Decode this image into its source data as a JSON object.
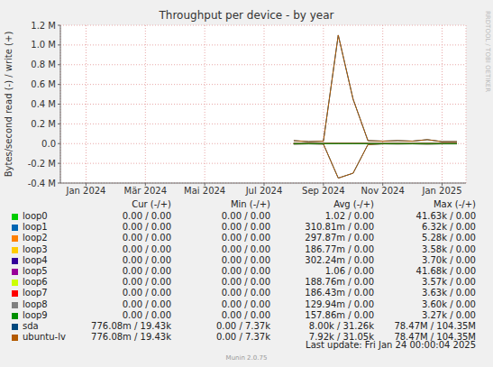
{
  "chart_data": {
    "type": "line",
    "title": "Throughput per device - by year",
    "y_label": "Bytes/second read (-) / write (+)",
    "side_text": "RRDTOOL / TOBI OETIKER",
    "categories": [
      null,
      "Jan 2024",
      null,
      null,
      null,
      "Mär 2024",
      null,
      null,
      null,
      "Mai 2024",
      null,
      null,
      null,
      "Jul 2024",
      null,
      null,
      null,
      "Sep 2024",
      null,
      null,
      null,
      "Nov 2024",
      null,
      null,
      null,
      "Jan 2025",
      null
    ],
    "ylim": [
      -400000,
      1200000
    ],
    "yticks": [
      {
        "value": -400000,
        "label": "-0.4 M"
      },
      {
        "value": -200000,
        "label": "-0.2 M"
      },
      {
        "value": 0,
        "label": "0.0"
      },
      {
        "value": 200000,
        "label": "0.2 M"
      },
      {
        "value": 400000,
        "label": "0.4 M"
      },
      {
        "value": 600000,
        "label": "0.6 M"
      },
      {
        "value": 800000,
        "label": "0.8 M"
      },
      {
        "value": 1000000,
        "label": "1.0 M"
      },
      {
        "value": 1200000,
        "label": "1.2 M"
      }
    ],
    "grid": true,
    "stat_headers": [
      "Cur (-/+)",
      "Min (-/+)",
      "Avg (-/+)",
      "Max (-/+)"
    ],
    "series": [
      {
        "name": "loop0",
        "color": "#00cc00",
        "stats": [
          "0.00 / 0.00",
          "0.00 / 0.00",
          "1.02 / 0.00",
          "41.63k / 0.00"
        ],
        "read": [
          null,
          null,
          null,
          null,
          null,
          null,
          null,
          null,
          null,
          null,
          null,
          null,
          null,
          null,
          null,
          0,
          0,
          0,
          0,
          0,
          0,
          0,
          0,
          0,
          0,
          0,
          0
        ],
        "write": [
          null,
          null,
          null,
          null,
          null,
          null,
          null,
          null,
          null,
          null,
          null,
          null,
          null,
          null,
          null,
          0,
          0,
          0,
          0,
          0,
          0,
          0,
          0,
          0,
          0,
          0,
          0
        ]
      },
      {
        "name": "loop1",
        "color": "#0066b3",
        "stats": [
          "0.00 / 0.00",
          "0.00 / 0.00",
          "310.81m / 0.00",
          "6.32k / 0.00"
        ],
        "read": [
          null,
          null,
          null,
          null,
          null,
          null,
          null,
          null,
          null,
          null,
          null,
          null,
          null,
          null,
          null,
          0,
          0,
          0,
          0,
          0,
          0,
          0,
          0,
          0,
          0,
          0,
          0
        ],
        "write": [
          null,
          null,
          null,
          null,
          null,
          null,
          null,
          null,
          null,
          null,
          null,
          null,
          null,
          null,
          null,
          0,
          0,
          0,
          0,
          0,
          0,
          0,
          0,
          0,
          0,
          0,
          0
        ]
      },
      {
        "name": "loop2",
        "color": "#ff8000",
        "stats": [
          "0.00 / 0.00",
          "0.00 / 0.00",
          "297.87m / 0.00",
          "5.28k / 0.00"
        ],
        "read": [
          null,
          null,
          null,
          null,
          null,
          null,
          null,
          null,
          null,
          null,
          null,
          null,
          null,
          null,
          null,
          0,
          0,
          0,
          0,
          0,
          0,
          0,
          0,
          0,
          0,
          0,
          0
        ],
        "write": [
          null,
          null,
          null,
          null,
          null,
          null,
          null,
          null,
          null,
          null,
          null,
          null,
          null,
          null,
          null,
          0,
          0,
          0,
          0,
          0,
          0,
          0,
          0,
          0,
          0,
          0,
          0
        ]
      },
      {
        "name": "loop3",
        "color": "#ffcc00",
        "stats": [
          "0.00 / 0.00",
          "0.00 / 0.00",
          "186.77m / 0.00",
          "3.58k / 0.00"
        ],
        "read": [
          null,
          null,
          null,
          null,
          null,
          null,
          null,
          null,
          null,
          null,
          null,
          null,
          null,
          null,
          null,
          0,
          0,
          0,
          0,
          0,
          0,
          0,
          0,
          0,
          0,
          0,
          0
        ],
        "write": [
          null,
          null,
          null,
          null,
          null,
          null,
          null,
          null,
          null,
          null,
          null,
          null,
          null,
          null,
          null,
          0,
          0,
          0,
          0,
          0,
          0,
          0,
          0,
          0,
          0,
          0,
          0
        ]
      },
      {
        "name": "loop4",
        "color": "#330099",
        "stats": [
          "0.00 / 0.00",
          "0.00 / 0.00",
          "302.24m / 0.00",
          "3.70k / 0.00"
        ],
        "read": [
          null,
          null,
          null,
          null,
          null,
          null,
          null,
          null,
          null,
          null,
          null,
          null,
          null,
          null,
          null,
          0,
          0,
          0,
          0,
          0,
          0,
          0,
          0,
          0,
          0,
          0,
          0
        ],
        "write": [
          null,
          null,
          null,
          null,
          null,
          null,
          null,
          null,
          null,
          null,
          null,
          null,
          null,
          null,
          null,
          0,
          0,
          0,
          0,
          0,
          0,
          0,
          0,
          0,
          0,
          0,
          0
        ]
      },
      {
        "name": "loop5",
        "color": "#990099",
        "stats": [
          "0.00 / 0.00",
          "0.00 / 0.00",
          "1.06 / 0.00",
          "41.68k / 0.00"
        ],
        "read": [
          null,
          null,
          null,
          null,
          null,
          null,
          null,
          null,
          null,
          null,
          null,
          null,
          null,
          null,
          null,
          0,
          0,
          0,
          0,
          0,
          0,
          0,
          0,
          0,
          0,
          0,
          0
        ],
        "write": [
          null,
          null,
          null,
          null,
          null,
          null,
          null,
          null,
          null,
          null,
          null,
          null,
          null,
          null,
          null,
          0,
          0,
          0,
          0,
          0,
          0,
          0,
          0,
          0,
          0,
          0,
          0
        ]
      },
      {
        "name": "loop6",
        "color": "#ccff00",
        "stats": [
          "0.00 / 0.00",
          "0.00 / 0.00",
          "188.76m / 0.00",
          "3.57k / 0.00"
        ],
        "read": [
          null,
          null,
          null,
          null,
          null,
          null,
          null,
          null,
          null,
          null,
          null,
          null,
          null,
          null,
          null,
          0,
          0,
          0,
          0,
          0,
          0,
          0,
          0,
          0,
          0,
          0,
          0
        ],
        "write": [
          null,
          null,
          null,
          null,
          null,
          null,
          null,
          null,
          null,
          null,
          null,
          null,
          null,
          null,
          null,
          0,
          0,
          0,
          0,
          0,
          0,
          0,
          0,
          0,
          0,
          0,
          0
        ]
      },
      {
        "name": "loop7",
        "color": "#ff0000",
        "stats": [
          "0.00 / 0.00",
          "0.00 / 0.00",
          "186.43m / 0.00",
          "3.63k / 0.00"
        ],
        "read": [
          null,
          null,
          null,
          null,
          null,
          null,
          null,
          null,
          null,
          null,
          null,
          null,
          null,
          null,
          null,
          0,
          0,
          0,
          0,
          0,
          0,
          0,
          0,
          0,
          0,
          0,
          0
        ],
        "write": [
          null,
          null,
          null,
          null,
          null,
          null,
          null,
          null,
          null,
          null,
          null,
          null,
          null,
          null,
          null,
          0,
          0,
          0,
          0,
          0,
          0,
          0,
          0,
          0,
          0,
          0,
          0
        ]
      },
      {
        "name": "loop8",
        "color": "#808080",
        "stats": [
          "0.00 / 0.00",
          "0.00 / 0.00",
          "129.94m / 0.00",
          "3.60k / 0.00"
        ],
        "read": [
          null,
          null,
          null,
          null,
          null,
          null,
          null,
          null,
          null,
          null,
          null,
          null,
          null,
          null,
          null,
          0,
          0,
          0,
          0,
          0,
          0,
          0,
          0,
          0,
          0,
          0,
          0
        ],
        "write": [
          null,
          null,
          null,
          null,
          null,
          null,
          null,
          null,
          null,
          null,
          null,
          null,
          null,
          null,
          null,
          0,
          0,
          0,
          0,
          0,
          0,
          0,
          0,
          0,
          0,
          0,
          0
        ]
      },
      {
        "name": "loop9",
        "color": "#008f00",
        "stats": [
          "0.00 / 0.00",
          "0.00 / 0.00",
          "157.86m / 0.00",
          "3.27k / 0.00"
        ],
        "read": [
          null,
          null,
          null,
          null,
          null,
          null,
          null,
          null,
          null,
          null,
          null,
          null,
          null,
          null,
          null,
          0,
          0,
          0,
          0,
          0,
          0,
          0,
          0,
          0,
          0,
          0,
          0
        ],
        "write": [
          null,
          null,
          null,
          null,
          null,
          null,
          null,
          null,
          null,
          null,
          null,
          null,
          null,
          null,
          null,
          0,
          0,
          0,
          0,
          0,
          0,
          0,
          0,
          0,
          0,
          0,
          0
        ]
      },
      {
        "name": "sda",
        "color": "#00487d",
        "stats": [
          "776.08m / 19.43k",
          "0.00 / 7.37k",
          "8.00k / 31.26k",
          "78.47M / 104.35M"
        ],
        "read": [
          null,
          null,
          null,
          null,
          null,
          null,
          null,
          null,
          null,
          null,
          null,
          null,
          null,
          null,
          null,
          -5000,
          -3000,
          -5000,
          -350000,
          -300000,
          -10000,
          -3000,
          -4000,
          -3000,
          -5000,
          -3000,
          -3000
        ],
        "write": [
          null,
          null,
          null,
          null,
          null,
          null,
          null,
          null,
          null,
          null,
          null,
          null,
          null,
          null,
          null,
          30000,
          20000,
          25000,
          1100000,
          450000,
          30000,
          25000,
          30000,
          25000,
          40000,
          20000,
          20000
        ]
      },
      {
        "name": "ubuntu-lv",
        "color": "#b35a00",
        "stats": [
          "776.08m / 19.43k",
          "0.00 / 7.37k",
          "7.92k / 31.05k",
          "78.47M / 104.35M"
        ],
        "read": [
          null,
          null,
          null,
          null,
          null,
          null,
          null,
          null,
          null,
          null,
          null,
          null,
          null,
          null,
          null,
          -5000,
          -3000,
          -5000,
          -350000,
          -300000,
          -10000,
          -3000,
          -4000,
          -3000,
          -5000,
          -3000,
          -3000
        ],
        "write": [
          null,
          null,
          null,
          null,
          null,
          null,
          null,
          null,
          null,
          null,
          null,
          null,
          null,
          null,
          null,
          30000,
          20000,
          25000,
          1100000,
          450000,
          30000,
          25000,
          30000,
          25000,
          40000,
          20000,
          20000
        ]
      }
    ],
    "last_update": "Last update: Fri Jan 24 00:00:04 2025",
    "footer": "Munin 2.0.75"
  }
}
